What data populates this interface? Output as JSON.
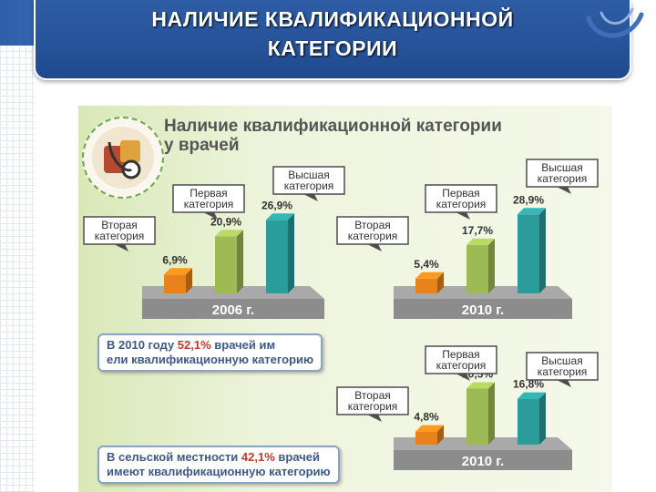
{
  "slide": {
    "title_line1": "НАЛИЧИЕ КВАЛИФИКАЦИОННОЙ",
    "title_line2": "КАТЕГОРИИ"
  },
  "figure": {
    "heading_line1": "Наличие квалификационной категории",
    "heading_line2": "у врачей",
    "note1_pre": "В 2010 году ",
    "note1_value": "52,1%",
    "note1_mid": " врачей им",
    "note1_line2": "ели квалификационную категорию",
    "note2_pre": "В сельской местности ",
    "note2_value": "42,1%",
    "note2_mid": " врачей",
    "note2_line2": "имеют квалификационную категорию"
  },
  "colors": {
    "title_bg": "#2f5da5",
    "bar_second": "#e8821a",
    "bar_first": "#9dba54",
    "bar_highest": "#2a9c9a",
    "highlight": "#c0392b"
  },
  "chart_data": [
    {
      "type": "bar",
      "base_label": "2006 г.",
      "categories": [
        "Вторая категория",
        "Первая категория",
        "Высшая категория"
      ],
      "values": [
        6.9,
        20.9,
        26.9
      ],
      "value_labels": [
        "6,9%",
        "20,9%",
        "26,9%"
      ],
      "callout_lines": [
        [
          "Вторая",
          "категория"
        ],
        [
          "Первая",
          "категория"
        ],
        [
          "Высшая",
          "категория"
        ]
      ]
    },
    {
      "type": "bar",
      "base_label": "2010 г.",
      "categories": [
        "Вторая категория",
        "Первая категория",
        "Высшая категория"
      ],
      "values": [
        5.4,
        17.7,
        28.9
      ],
      "value_labels": [
        "5,4%",
        "17,7%",
        "28,9%"
      ],
      "callout_lines": [
        [
          "Вторая",
          "категория"
        ],
        [
          "Первая",
          "категория"
        ],
        [
          "Высшая",
          "категория"
        ]
      ]
    },
    {
      "type": "bar",
      "base_label": "2010 г.",
      "categories": [
        "Вторая категория",
        "Первая категория",
        "Высшая категория"
      ],
      "values": [
        4.8,
        20.5,
        16.8
      ],
      "value_labels": [
        "4,8%",
        "20,5%",
        "16,8%"
      ],
      "callout_lines": [
        [
          "Вторая",
          "категория"
        ],
        [
          "Первая",
          "категория"
        ],
        [
          "Высшая",
          "категория"
        ]
      ]
    }
  ]
}
